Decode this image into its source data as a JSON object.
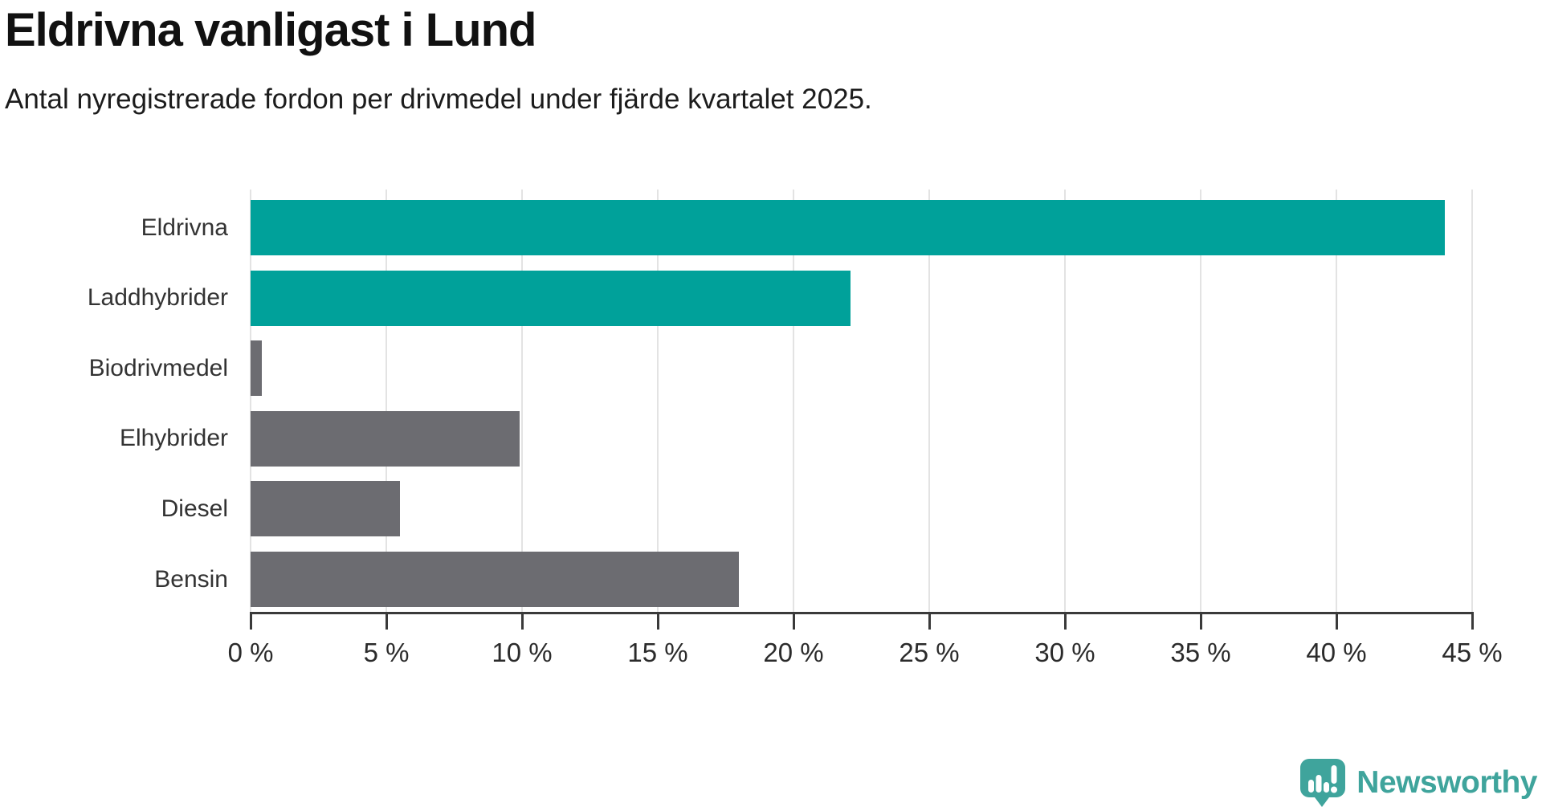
{
  "header": {
    "title": "Eldrivna vanligast i Lund",
    "subtitle": "Antal nyregistrerade fordon per drivmedel under fjärde kvartalet 2025."
  },
  "chart_data": {
    "type": "bar",
    "orientation": "horizontal",
    "title": "Eldrivna vanligast i Lund",
    "subtitle": "Antal nyregistrerade fordon per drivmedel under fjärde kvartalet 2025.",
    "categories": [
      "Eldrivna",
      "Laddhybrider",
      "Biodrivmedel",
      "Elhybrider",
      "Diesel",
      "Bensin"
    ],
    "values": [
      44,
      22.1,
      0.4,
      9.9,
      5.5,
      18
    ],
    "unit": "%",
    "xlim": [
      0,
      45
    ],
    "xticks": [
      0,
      5,
      10,
      15,
      20,
      25,
      30,
      35,
      40,
      45
    ],
    "xtick_suffix": " %",
    "grid": true,
    "legend": "none",
    "bar_colors": [
      "#00a19a",
      "#00a19a",
      "#6c6c71",
      "#6c6c71",
      "#6c6c71",
      "#6c6c71"
    ],
    "highlight_color": "#00a19a",
    "base_color": "#6c6c71",
    "gridline_color": "#e3e3e3",
    "axis_color": "#3a3a3a"
  },
  "footer": {
    "brand": "Newsworthy",
    "brand_color": "#3fa49c",
    "logo_icon": "newsworthy-speech-bubble-chart-icon"
  }
}
